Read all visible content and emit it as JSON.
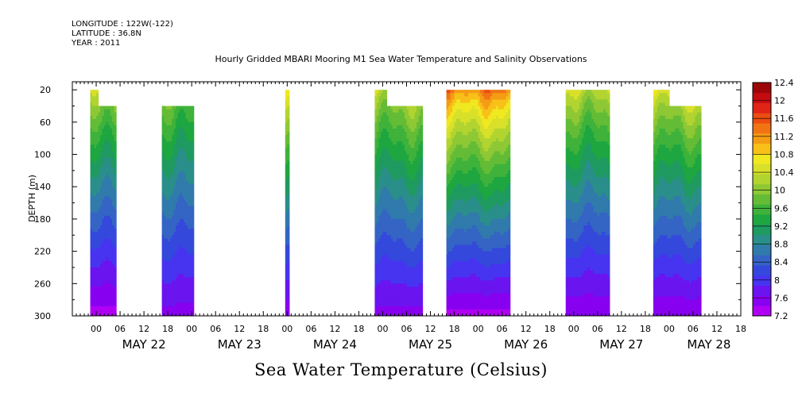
{
  "header": {
    "longitude": "LONGITUDE : 122W(-122)",
    "latitude": "LATITUDE : 36.8N",
    "year": "YEAR : 2011"
  },
  "chart_data": {
    "type": "heatmap",
    "title": "Hourly Gridded MBARI Mooring M1 Sea Water Temperature and Salinity Observations",
    "ylabel": "DEPTH (m)",
    "colorbar_label": "Sea Water Temperature (Celsius)",
    "x_units": "hours since May 21 18:00, 2011",
    "xlim": [
      0,
      168
    ],
    "ylim": [
      300,
      10
    ],
    "y_ticks": [
      20,
      60,
      100,
      140,
      180,
      220,
      260,
      300
    ],
    "x_hour_ticks": [
      "00",
      "06",
      "12",
      "18",
      "00",
      "06",
      "12",
      "18",
      "00",
      "06",
      "12",
      "18",
      "00",
      "06",
      "12",
      "18",
      "00",
      "06",
      "12",
      "18",
      "00",
      "06",
      "12",
      "18",
      "00",
      "06",
      "12",
      "18"
    ],
    "x_hour_tick_positions": [
      6,
      12,
      18,
      24,
      30,
      36,
      42,
      48,
      54,
      60,
      66,
      72,
      78,
      84,
      90,
      96,
      102,
      108,
      114,
      120,
      126,
      132,
      138,
      144,
      150,
      156,
      162,
      168
    ],
    "day_labels": [
      {
        "label": "MAY 22",
        "x": 18
      },
      {
        "label": "MAY 23",
        "x": 42
      },
      {
        "label": "MAY 24",
        "x": 66
      },
      {
        "label": "MAY 25",
        "x": 90
      },
      {
        "label": "MAY 26",
        "x": 114
      },
      {
        "label": "MAY 27",
        "x": 138
      },
      {
        "label": "MAY 28",
        "x": 160
      }
    ],
    "colorbar_levels": [
      7.2,
      7.6,
      8,
      8.4,
      8.8,
      9.2,
      9.6,
      10,
      10.4,
      10.8,
      11.2,
      11.6,
      12,
      12.4
    ],
    "colorbar_colors": [
      "#b000f4",
      "#8800f0",
      "#6a14f0",
      "#4634f0",
      "#3448dc",
      "#3464c4",
      "#307aac",
      "#2a8e8a",
      "#1f9a60",
      "#1ea640",
      "#3eb23a",
      "#64bc36",
      "#8ec834",
      "#b2d430",
      "#d8e02a",
      "#f0e820",
      "#f8c018",
      "#f49c14",
      "#f07414",
      "#ec4c12",
      "#e02418",
      "#c40c10",
      "#9c0608"
    ],
    "contour_interval": 0.2,
    "data_segments": [
      {
        "x_start": 4.5,
        "x_end": 11,
        "top_depth": 40,
        "top_depth_early": 20,
        "early_until": 6.5,
        "t_surface": 10.0,
        "t_bottom": 7.3
      },
      {
        "x_start": 22.5,
        "x_end": 30.5,
        "top_depth": 40,
        "t_surface": 9.7,
        "t_bottom": 7.5
      },
      {
        "x_start": 53.5,
        "x_end": 54.5,
        "top_depth": 20,
        "t_surface": 10.2,
        "t_bottom": 7.4
      },
      {
        "x_start": 76,
        "x_end": 88,
        "top_depth": 40,
        "top_depth_early": 20,
        "early_until": 79,
        "t_surface": 10.0,
        "t_bottom": 7.5
      },
      {
        "x_start": 94,
        "x_end": 110,
        "top_depth": 20,
        "t_surface": 10.8,
        "t_bottom": 7.3
      },
      {
        "x_start": 124,
        "x_end": 135,
        "top_depth": 20,
        "t_surface": 10.0,
        "t_bottom": 7.4
      },
      {
        "x_start": 146,
        "x_end": 158,
        "top_depth": 40,
        "top_depth_early": 20,
        "early_until": 150,
        "t_surface": 10.2,
        "t_bottom": 7.4
      }
    ]
  }
}
